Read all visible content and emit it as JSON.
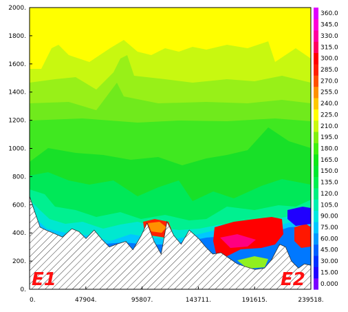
{
  "chart_data": {
    "type": "contour",
    "xlabel": "",
    "ylabel": "",
    "xlim": [
      0,
      239518
    ],
    "ylim": [
      0,
      2000
    ],
    "x_ticks": [
      "0.",
      "47904.",
      "95807.",
      "143711.",
      "191615.",
      "239518."
    ],
    "y_ticks": [
      "0.",
      "200.",
      "400.",
      "600.",
      "800.",
      "1000.",
      "1200.",
      "1400.",
      "1600.",
      "1800.",
      "2000."
    ],
    "colorbar": {
      "levels": [
        "0.000",
        "15.00",
        "30.00",
        "45.00",
        "60.00",
        "75.00",
        "90.00",
        "105.0",
        "120.0",
        "135.0",
        "150.0",
        "165.0",
        "180.0",
        "195.0",
        "210.0",
        "225.0",
        "240.0",
        "255.0",
        "270.0",
        "285.0",
        "300.0",
        "315.0",
        "330.0",
        "345.0",
        "360.0"
      ],
      "colors": [
        "#7a00ff",
        "#2200ff",
        "#0030ff",
        "#0060ff",
        "#0098ff",
        "#00c8ff",
        "#00e8e0",
        "#00f0b0",
        "#00f080",
        "#00f050",
        "#00e830",
        "#10e818",
        "#40f010",
        "#80f010",
        "#c8f810",
        "#ffff00",
        "#ffc800",
        "#ff9000",
        "#ff5000",
        "#ff2000",
        "#ff0000",
        "#ff0060",
        "#ff00a0",
        "#ff00d8",
        "#e000ff"
      ]
    },
    "terrain_x": [
      0,
      4000,
      9000,
      14000,
      20000,
      28000,
      36000,
      42000,
      48000,
      55000,
      62000,
      68000,
      74000,
      82000,
      88000,
      95000,
      100000,
      106000,
      112000,
      117000,
      123000,
      129000,
      136000,
      144000,
      150000,
      156000,
      163000,
      170000,
      177000,
      184000,
      192000,
      200000,
      206000,
      213000,
      218000,
      223000,
      229000,
      234000,
      239518
    ],
    "terrain_y": [
      660,
      560,
      440,
      420,
      400,
      370,
      430,
      410,
      360,
      420,
      350,
      300,
      320,
      340,
      280,
      380,
      470,
      340,
      250,
      480,
      380,
      320,
      420,
      360,
      300,
      250,
      260,
      220,
      180,
      160,
      140,
      150,
      210,
      320,
      300,
      200,
      150,
      180,
      170
    ],
    "annotations": [
      "E1",
      "E2"
    ]
  }
}
